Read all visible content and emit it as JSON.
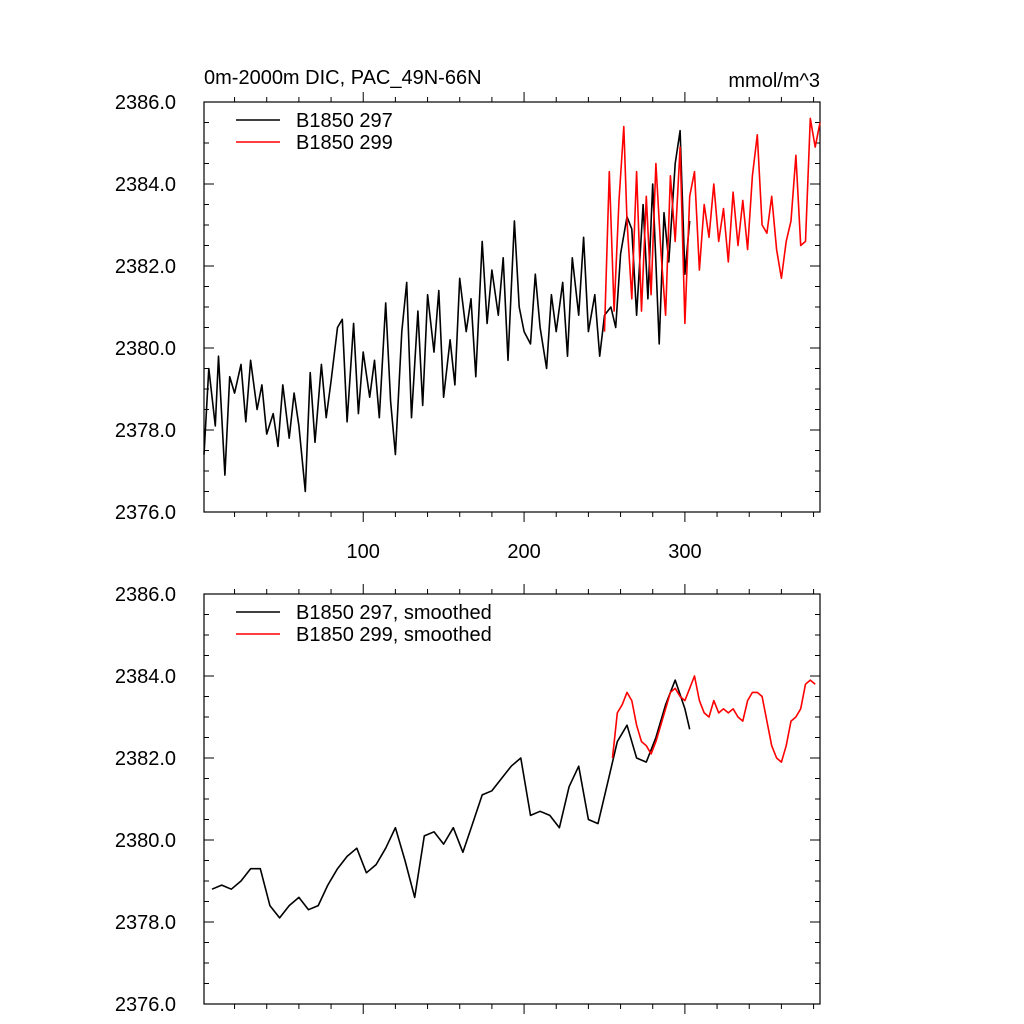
{
  "chart_data": [
    {
      "type": "line",
      "title": "0m-2000m DIC, PAC_49N-66N",
      "units": "mmol/m^3",
      "xlim": [
        1,
        384
      ],
      "ylim": [
        2376.0,
        2386.0
      ],
      "xticks": [
        100,
        200,
        300
      ],
      "xtick_labels": [
        "100",
        "200",
        "300"
      ],
      "yticks": [
        2376.0,
        2378.0,
        2380.0,
        2382.0,
        2384.0,
        2386.0
      ],
      "ytick_labels": [
        "2376.0",
        "2378.0",
        "2380.0",
        "2382.0",
        "2384.0",
        "2386.0"
      ],
      "legend": "top-left",
      "series": [
        {
          "name": "B1850 297",
          "color": "#000000",
          "x": [
            1,
            4,
            8,
            10,
            14,
            17,
            20,
            24,
            27,
            30,
            34,
            37,
            40,
            44,
            47,
            50,
            54,
            57,
            60,
            64,
            67,
            70,
            74,
            77,
            80,
            84,
            87,
            90,
            94,
            97,
            100,
            104,
            107,
            110,
            114,
            117,
            120,
            124,
            127,
            130,
            134,
            137,
            140,
            144,
            147,
            150,
            154,
            157,
            160,
            164,
            167,
            170,
            174,
            177,
            180,
            184,
            187,
            190,
            194,
            197,
            200,
            204,
            207,
            210,
            214,
            217,
            220,
            224,
            227,
            230,
            234,
            237,
            240,
            244,
            247,
            250,
            254,
            257,
            260,
            264,
            267,
            270,
            274,
            277,
            280,
            284,
            287,
            290,
            294,
            297,
            300,
            303
          ],
          "values": [
            2377.4,
            2379.5,
            2378.1,
            2379.8,
            2376.9,
            2379.3,
            2378.9,
            2379.6,
            2378.2,
            2379.7,
            2378.5,
            2379.1,
            2377.9,
            2378.4,
            2377.6,
            2379.1,
            2377.8,
            2378.9,
            2378.1,
            2376.5,
            2379.4,
            2377.7,
            2379.6,
            2378.3,
            2379.2,
            2380.5,
            2380.7,
            2378.2,
            2380.6,
            2378.4,
            2379.9,
            2378.8,
            2379.7,
            2378.3,
            2381.1,
            2378.7,
            2377.4,
            2380.4,
            2381.6,
            2378.3,
            2380.9,
            2378.6,
            2381.3,
            2379.9,
            2381.4,
            2378.8,
            2380.2,
            2379.1,
            2381.7,
            2380.4,
            2381.2,
            2379.3,
            2382.6,
            2380.6,
            2381.9,
            2380.8,
            2382.2,
            2379.7,
            2383.1,
            2381.0,
            2380.4,
            2380.1,
            2381.8,
            2380.5,
            2379.5,
            2381.3,
            2380.4,
            2381.6,
            2379.8,
            2382.2,
            2380.8,
            2382.7,
            2380.4,
            2381.3,
            2379.8,
            2380.8,
            2381.0,
            2380.5,
            2382.3,
            2383.2,
            2382.9,
            2380.8,
            2383.5,
            2381.2,
            2384.0,
            2380.1,
            2383.3,
            2382.1,
            2384.5,
            2385.3,
            2381.8,
            2383.1
          ]
        },
        {
          "name": "B1850 299",
          "color": "#ff0000",
          "x": [
            250,
            253,
            256,
            259,
            262,
            264,
            267,
            270,
            273,
            276,
            279,
            282,
            285,
            288,
            291,
            294,
            297,
            300,
            303,
            306,
            309,
            312,
            315,
            318,
            321,
            324,
            327,
            330,
            333,
            336,
            339,
            342,
            345,
            348,
            351,
            354,
            357,
            360,
            363,
            366,
            369,
            372,
            375,
            378,
            381,
            384
          ],
          "values": [
            2380.4,
            2384.3,
            2380.9,
            2383.6,
            2385.4,
            2383.1,
            2381.2,
            2384.3,
            2380.9,
            2383.7,
            2381.3,
            2384.5,
            2382.4,
            2380.8,
            2384.2,
            2382.6,
            2384.9,
            2380.6,
            2383.7,
            2384.3,
            2381.9,
            2383.5,
            2382.7,
            2384.0,
            2382.6,
            2383.4,
            2382.1,
            2383.8,
            2382.5,
            2383.6,
            2382.4,
            2384.2,
            2385.2,
            2383.0,
            2382.8,
            2383.7,
            2382.4,
            2381.7,
            2382.6,
            2383.1,
            2384.7,
            2382.5,
            2382.6,
            2385.6,
            2384.9,
            2385.5
          ]
        }
      ]
    },
    {
      "type": "line",
      "title": "",
      "xlim": [
        1,
        384
      ],
      "ylim": [
        2376.0,
        2386.0
      ],
      "xticks": [
        100,
        200,
        300
      ],
      "yticks": [
        2376.0,
        2378.0,
        2380.0,
        2382.0,
        2384.0,
        2386.0
      ],
      "ytick_labels": [
        "2376.0",
        "2378.0",
        "2380.0",
        "2382.0",
        "2384.0",
        "2386.0"
      ],
      "legend": "top-left",
      "series": [
        {
          "name": "B1850 297, smoothed",
          "color": "#000000",
          "x": [
            6,
            12,
            18,
            24,
            30,
            36,
            42,
            48,
            54,
            60,
            66,
            72,
            78,
            84,
            90,
            96,
            102,
            108,
            114,
            120,
            126,
            132,
            138,
            144,
            150,
            156,
            162,
            168,
            174,
            180,
            186,
            192,
            198,
            204,
            210,
            216,
            222,
            228,
            234,
            240,
            246,
            252,
            258,
            264,
            270,
            276,
            282,
            288,
            294,
            300,
            303
          ],
          "values": [
            2378.8,
            2378.9,
            2378.8,
            2379.0,
            2379.3,
            2379.3,
            2378.4,
            2378.1,
            2378.4,
            2378.6,
            2378.3,
            2378.4,
            2378.9,
            2379.3,
            2379.6,
            2379.8,
            2379.2,
            2379.4,
            2379.8,
            2380.3,
            2379.5,
            2378.6,
            2380.1,
            2380.2,
            2379.9,
            2380.3,
            2379.7,
            2380.4,
            2381.1,
            2381.2,
            2381.5,
            2381.8,
            2382.0,
            2380.6,
            2380.7,
            2380.6,
            2380.3,
            2381.3,
            2381.8,
            2380.5,
            2380.4,
            2381.4,
            2382.4,
            2382.8,
            2382.0,
            2381.9,
            2382.5,
            2383.3,
            2383.9,
            2383.2,
            2382.7
          ],
          "names": []
        },
        {
          "name": "B1850 299, smoothed",
          "color": "#ff0000",
          "x": [
            255,
            258,
            261,
            264,
            267,
            270,
            273,
            276,
            279,
            282,
            285,
            288,
            291,
            294,
            297,
            300,
            303,
            306,
            309,
            312,
            315,
            318,
            321,
            324,
            327,
            330,
            333,
            336,
            339,
            342,
            345,
            348,
            351,
            354,
            357,
            360,
            363,
            366,
            369,
            372,
            375,
            378,
            381
          ],
          "values": [
            2382.0,
            2383.1,
            2383.3,
            2383.6,
            2383.4,
            2382.8,
            2382.4,
            2382.3,
            2382.1,
            2382.4,
            2382.8,
            2383.2,
            2383.6,
            2383.7,
            2383.5,
            2383.4,
            2383.7,
            2384.0,
            2383.4,
            2383.1,
            2383.0,
            2383.4,
            2383.1,
            2383.2,
            2383.1,
            2383.2,
            2383.0,
            2382.9,
            2383.4,
            2383.6,
            2383.6,
            2383.5,
            2382.9,
            2382.3,
            2382.0,
            2381.9,
            2382.3,
            2382.9,
            2383.0,
            2383.2,
            2383.8,
            2383.9,
            2383.8
          ]
        }
      ]
    }
  ]
}
